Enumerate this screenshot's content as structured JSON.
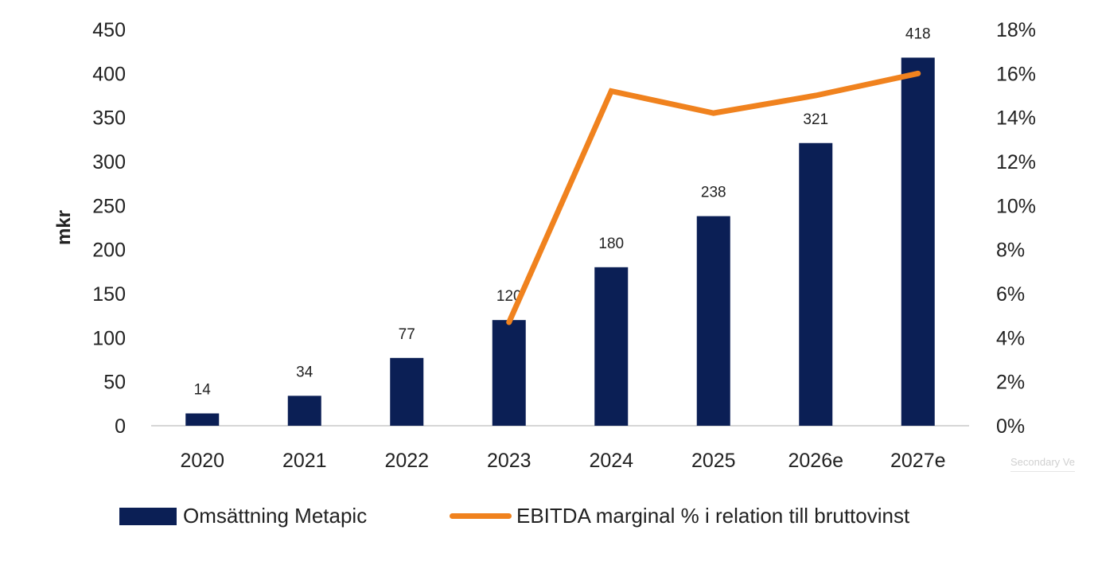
{
  "chart_data": {
    "type": "bar",
    "categories": [
      "2020",
      "2021",
      "2022",
      "2023",
      "2024",
      "2025",
      "2026e",
      "2027e"
    ],
    "series": [
      {
        "name": "Omsättning Metapic",
        "type": "bar",
        "axis": "left",
        "color": "#0b1f55",
        "values": [
          14,
          34,
          77,
          120,
          180,
          238,
          321,
          418
        ]
      },
      {
        "name": "EBITDA marginal % i relation till bruttovinst",
        "type": "line",
        "axis": "right",
        "color": "#f0821e",
        "values": [
          null,
          null,
          null,
          4.7,
          15.2,
          14.2,
          15.0,
          16.0
        ]
      }
    ],
    "ylabel": "mkr",
    "ylim": [
      0,
      450
    ],
    "yticks": [
      "0",
      "50",
      "100",
      "150",
      "200",
      "250",
      "300",
      "350",
      "400",
      "450"
    ],
    "y2lim": [
      0,
      18
    ],
    "y2ticks": [
      "0%",
      "2%",
      "4%",
      "6%",
      "8%",
      "10%",
      "12%",
      "14%",
      "16%",
      "18%"
    ],
    "data_labels": [
      "14",
      "34",
      "77",
      "120",
      "180",
      "238",
      "321",
      "418"
    ],
    "legend_placement": "bottom",
    "grid": false
  },
  "overlay_text": "Secondary Ve"
}
